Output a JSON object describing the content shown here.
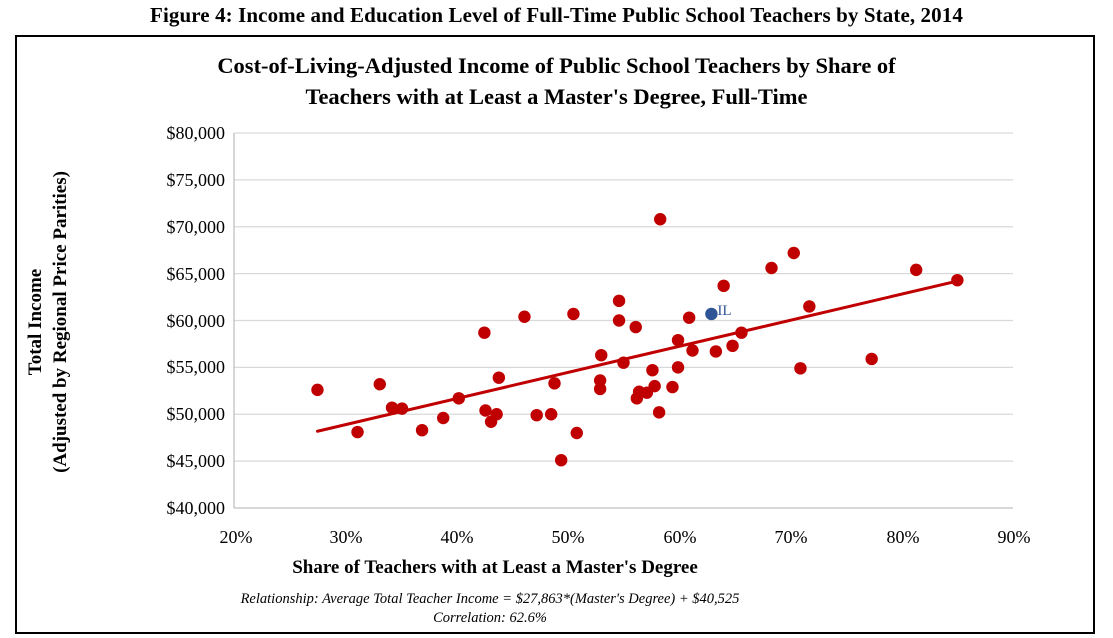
{
  "figure": {
    "title": "Figure 4: Income and Education Level of Full-Time Public School Teachers by State, 2014"
  },
  "chart": {
    "title_line1": "Cost-of-Living-Adjusted Income of Public School Teachers by Share of",
    "title_line2": "Teachers with at Least a Master's Degree, Full-Time",
    "ylabel_line1": "Total Income",
    "ylabel_line2": "(Adjusted by Regional Price Parities)",
    "xlabel": "Share of Teachers with at Least a Master's Degree",
    "relationship": "Relationship: Average Total Teacher Income = $27,863*(Master's Degree) + $40,525",
    "correlation": "Correlation: 62.6%",
    "yticks": [
      "$80,000",
      "$75,000",
      "$70,000",
      "$65,000",
      "$60,000",
      "$55,000",
      "$50,000",
      "$45,000",
      "$40,000"
    ],
    "xticks": [
      "20%",
      "30%",
      "40%",
      "50%",
      "60%",
      "70%",
      "80%",
      "90%"
    ],
    "highlight_label": "IL"
  },
  "colors": {
    "point": "#C00000",
    "highlight": "#2F5597",
    "trendline": "#C00000",
    "grid": "#D9D9D9",
    "axis": "#BFBFBF"
  },
  "chart_data": {
    "type": "scatter",
    "title": "Cost-of-Living-Adjusted Income of Public School Teachers by Share of Teachers with at Least a Master's Degree, Full-Time",
    "xlabel": "Share of Teachers with at Least a Master's Degree",
    "ylabel": "Total Income (Adjusted by Regional Price Parities)",
    "xlim": [
      20,
      90
    ],
    "ylim": [
      40000,
      80000
    ],
    "x_unit": "%",
    "grid": "horizontal",
    "legend": "none",
    "trendline": {
      "slope": 27863,
      "intercept": 40525,
      "x_range": [
        27.5,
        85.0
      ],
      "label": "Average Total Teacher Income = $27,863*(Master's Degree) + $40,525",
      "correlation": 0.626
    },
    "annotations": [
      {
        "label": "IL",
        "x": 62.9,
        "y": 60700,
        "color": "#2F5597"
      }
    ],
    "points": [
      {
        "x": 27.5,
        "y": 52600
      },
      {
        "x": 31.1,
        "y": 48100
      },
      {
        "x": 33.1,
        "y": 53200
      },
      {
        "x": 34.2,
        "y": 50700
      },
      {
        "x": 35.1,
        "y": 50600
      },
      {
        "x": 36.9,
        "y": 48300
      },
      {
        "x": 38.8,
        "y": 49600
      },
      {
        "x": 40.2,
        "y": 51700
      },
      {
        "x": 42.5,
        "y": 58700
      },
      {
        "x": 42.6,
        "y": 50400
      },
      {
        "x": 43.1,
        "y": 49200
      },
      {
        "x": 43.6,
        "y": 50000
      },
      {
        "x": 43.8,
        "y": 53900
      },
      {
        "x": 46.1,
        "y": 60400
      },
      {
        "x": 47.2,
        "y": 49900
      },
      {
        "x": 48.5,
        "y": 50000
      },
      {
        "x": 48.8,
        "y": 53300
      },
      {
        "x": 49.4,
        "y": 45100
      },
      {
        "x": 50.5,
        "y": 60700
      },
      {
        "x": 50.8,
        "y": 48000
      },
      {
        "x": 52.9,
        "y": 53600
      },
      {
        "x": 52.9,
        "y": 52700
      },
      {
        "x": 53.0,
        "y": 56300
      },
      {
        "x": 54.6,
        "y": 62100
      },
      {
        "x": 54.6,
        "y": 60000
      },
      {
        "x": 55.0,
        "y": 55500
      },
      {
        "x": 56.1,
        "y": 59300
      },
      {
        "x": 56.2,
        "y": 51700
      },
      {
        "x": 56.4,
        "y": 52400
      },
      {
        "x": 57.1,
        "y": 52300
      },
      {
        "x": 57.6,
        "y": 54700
      },
      {
        "x": 57.8,
        "y": 53000
      },
      {
        "x": 58.2,
        "y": 50200
      },
      {
        "x": 58.3,
        "y": 70800
      },
      {
        "x": 59.4,
        "y": 52900
      },
      {
        "x": 59.9,
        "y": 55000
      },
      {
        "x": 59.9,
        "y": 57900
      },
      {
        "x": 60.9,
        "y": 60300
      },
      {
        "x": 61.2,
        "y": 56800
      },
      {
        "x": 62.9,
        "y": 60700,
        "label": "IL",
        "highlight": true
      },
      {
        "x": 63.3,
        "y": 56700
      },
      {
        "x": 64.0,
        "y": 63700
      },
      {
        "x": 64.8,
        "y": 57300
      },
      {
        "x": 65.6,
        "y": 58700
      },
      {
        "x": 68.3,
        "y": 65600
      },
      {
        "x": 70.3,
        "y": 67200
      },
      {
        "x": 70.9,
        "y": 54900
      },
      {
        "x": 71.7,
        "y": 61500
      },
      {
        "x": 77.3,
        "y": 55900
      },
      {
        "x": 81.3,
        "y": 65400
      },
      {
        "x": 85.0,
        "y": 64300
      }
    ]
  }
}
